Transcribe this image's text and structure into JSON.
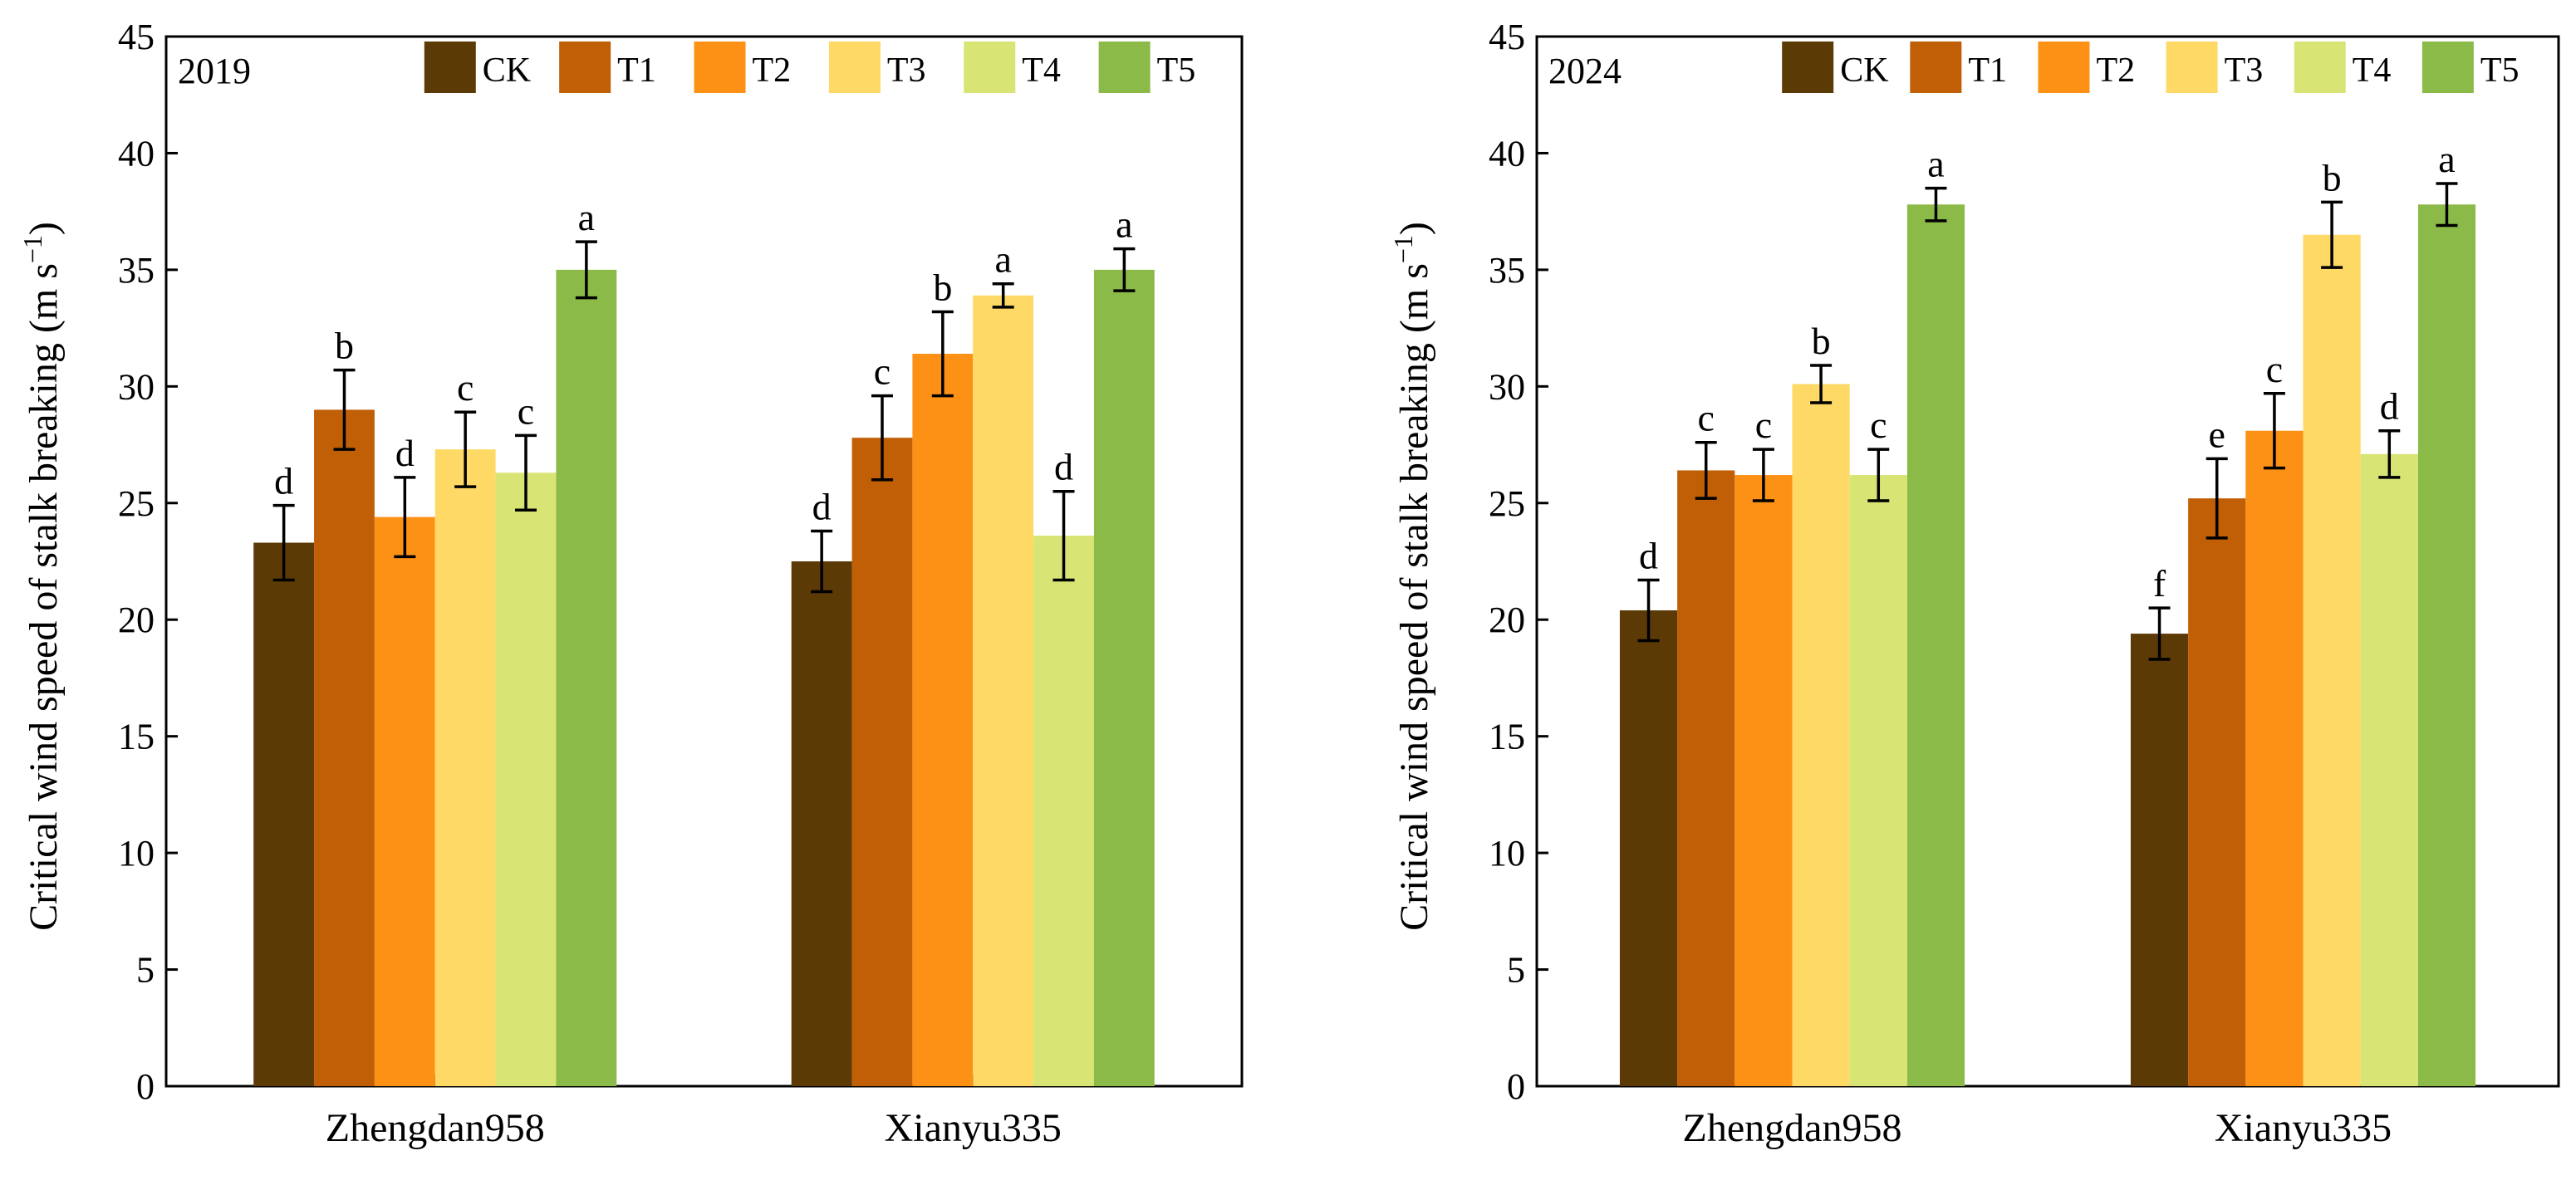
{
  "chart_data": [
    {
      "type": "bar",
      "title": "2019",
      "ylabel": "Critical wind speed of stalk breaking (m s",
      "ylabel_superscript": "−1",
      "ylabel_close": ")",
      "ylim": [
        0,
        45
      ],
      "yticks": [
        0,
        5,
        10,
        15,
        20,
        25,
        30,
        35,
        40,
        45
      ],
      "categories": [
        "Zhengdan958",
        "Xianyu335"
      ],
      "series": [
        {
          "name": "CK",
          "color": "#5c3a06",
          "values": [
            23.3,
            22.5
          ],
          "errors": [
            1.6,
            1.3
          ],
          "letters": [
            "d",
            "d"
          ]
        },
        {
          "name": "T1",
          "color": "#c05f06",
          "values": [
            29.0,
            27.8
          ],
          "errors": [
            1.7,
            1.8
          ],
          "letters": [
            "b",
            "c"
          ]
        },
        {
          "name": "T2",
          "color": "#fc9116",
          "values": [
            24.4,
            31.4
          ],
          "errors": [
            1.7,
            1.8
          ],
          "letters": [
            "d",
            "b"
          ]
        },
        {
          "name": "T3",
          "color": "#fed965",
          "values": [
            27.3,
            33.9
          ],
          "errors": [
            1.6,
            0.5
          ],
          "letters": [
            "c",
            "a"
          ]
        },
        {
          "name": "T4",
          "color": "#d8e575",
          "values": [
            26.3,
            23.6
          ],
          "errors": [
            1.6,
            1.9
          ],
          "letters": [
            "c",
            "d"
          ]
        },
        {
          "name": "T5",
          "color": "#8cba48",
          "values": [
            35.0,
            35.0
          ],
          "errors": [
            1.2,
            0.9
          ],
          "letters": [
            "a",
            "a"
          ]
        }
      ]
    },
    {
      "type": "bar",
      "title": "2024",
      "ylabel": "Critical wind speed of stalk breaking (m s",
      "ylabel_superscript": "−1",
      "ylabel_close": ")",
      "ylim": [
        0,
        45
      ],
      "yticks": [
        0,
        5,
        10,
        15,
        20,
        25,
        30,
        35,
        40,
        45
      ],
      "categories": [
        "Zhengdan958",
        "Xianyu335"
      ],
      "series": [
        {
          "name": "CK",
          "color": "#5c3a06",
          "values": [
            20.4,
            19.4
          ],
          "errors": [
            1.3,
            1.1
          ],
          "letters": [
            "d",
            "f"
          ]
        },
        {
          "name": "T1",
          "color": "#c05f06",
          "values": [
            26.4,
            25.2
          ],
          "errors": [
            1.2,
            1.7
          ],
          "letters": [
            "c",
            "e"
          ]
        },
        {
          "name": "T2",
          "color": "#fc9116",
          "values": [
            26.2,
            28.1
          ],
          "errors": [
            1.1,
            1.6
          ],
          "letters": [
            "c",
            "c"
          ]
        },
        {
          "name": "T3",
          "color": "#fed965",
          "values": [
            30.1,
            36.5
          ],
          "errors": [
            0.8,
            1.4
          ],
          "letters": [
            "b",
            "b"
          ]
        },
        {
          "name": "T4",
          "color": "#d8e575",
          "values": [
            26.2,
            27.1
          ],
          "errors": [
            1.1,
            1.0
          ],
          "letters": [
            "c",
            "d"
          ]
        },
        {
          "name": "T5",
          "color": "#8cba48",
          "values": [
            37.8,
            37.8
          ],
          "errors": [
            0.7,
            0.9
          ],
          "letters": [
            "a",
            "a"
          ]
        }
      ]
    }
  ]
}
